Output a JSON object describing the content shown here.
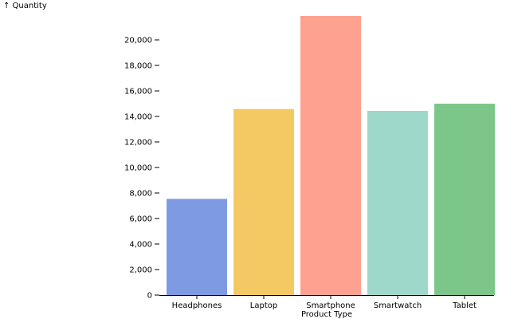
{
  "chart_data": {
    "type": "bar",
    "title": "",
    "xlabel": "Product Type",
    "ylabel": "↑ Quantity",
    "categories": [
      "Headphones",
      "Laptop",
      "Smartphone",
      "Smartwatch",
      "Tablet"
    ],
    "values": [
      7540,
      14580,
      21875,
      14440,
      15000
    ],
    "colors": [
      "#7e9ae2",
      "#f4c964",
      "#ffa190",
      "#9dd8cb",
      "#7cc68a"
    ],
    "ylim": [
      0,
      22000
    ],
    "yticks": [
      0,
      2000,
      4000,
      6000,
      8000,
      10000,
      12000,
      14000,
      16000,
      18000,
      20000
    ],
    "ytick_labels": [
      "0",
      "2,000",
      "4,000",
      "6,000",
      "8,000",
      "10,000",
      "12,000",
      "14,000",
      "16,000",
      "18,000",
      "20,000"
    ],
    "grid": false,
    "legend": "none"
  }
}
